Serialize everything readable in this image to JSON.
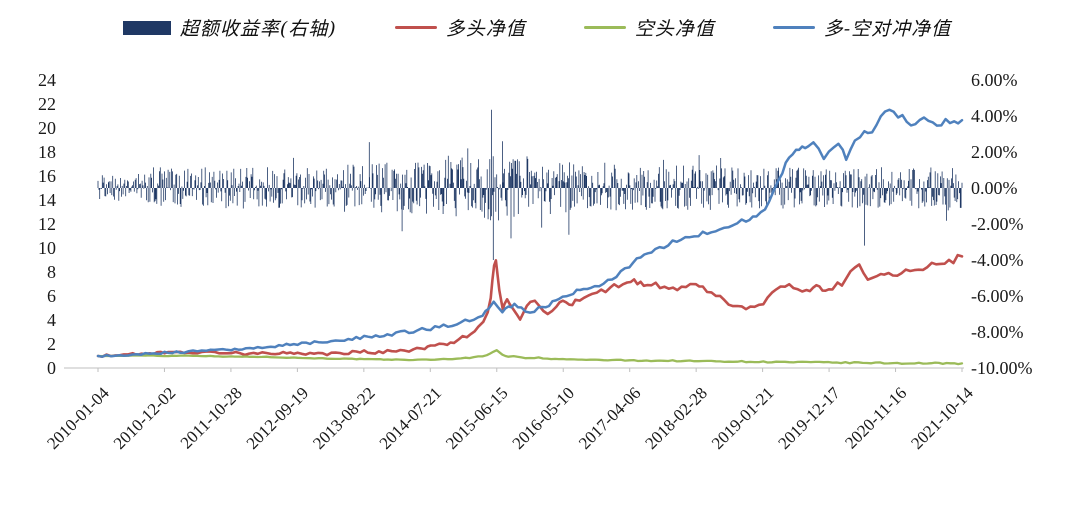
{
  "legend": {
    "items": [
      {
        "label": "超额收益率(右轴)",
        "type": "bar",
        "color": "#1f3864"
      },
      {
        "label": "多头净值",
        "type": "line",
        "color": "#c0504d"
      },
      {
        "label": "空头净值",
        "type": "line",
        "color": "#9bbb59"
      },
      {
        "label": "多-空对冲净值",
        "type": "line",
        "color": "#4f81bd"
      }
    ]
  },
  "chart_data": {
    "type": "combo",
    "title": "",
    "grid": false,
    "legend_position": "top",
    "left_axis": {
      "min": 0,
      "max": 24,
      "tick_step": 2,
      "ticks": [
        "24",
        "22",
        "20",
        "18",
        "16",
        "14",
        "12",
        "10",
        "8",
        "6",
        "4",
        "2",
        "0"
      ]
    },
    "right_axis": {
      "min": -10,
      "max": 6,
      "tick_step": 2,
      "ticks": [
        "6.00%",
        "4.00%",
        "2.00%",
        "0.00%",
        "-2.00%",
        "-4.00%",
        "-6.00%",
        "-8.00%",
        "-10.00%"
      ]
    },
    "x_labels": [
      "2010-01-04",
      "2010-12-02",
      "2011-10-28",
      "2012-09-19",
      "2013-08-22",
      "2014-07-21",
      "2015-06-15",
      "2016-05-10",
      "2017-04-06",
      "2018-02-28",
      "2019-01-21",
      "2019-12-17",
      "2020-11-16",
      "2021-10-14"
    ],
    "series": [
      {
        "name": "超额收益率(右轴)",
        "type": "bar",
        "axis": "right",
        "color": "#1f3864",
        "noise": {
          "n": 1000,
          "seed": 987654321,
          "base_amp": 1.15,
          "outlier_prob": 0.02,
          "outlier_scale": 1.7,
          "vol_periods": [
            {
              "from": 0.0,
              "to": 0.06,
              "amp": 0.8
            },
            {
              "from": 0.28,
              "to": 0.4,
              "amp": 1.45
            },
            {
              "from": 0.4,
              "to": 0.5,
              "amp": 1.8
            },
            {
              "from": 0.5,
              "to": 0.6,
              "amp": 1.5
            },
            {
              "from": 0.6,
              "to": 0.72,
              "amp": 1.25
            }
          ]
        },
        "spikes": [
          {
            "x": 0.4555,
            "value": 4.35
          },
          {
            "x": 0.4575,
            "value": -4.0
          },
          {
            "x": 0.314,
            "value": 2.55
          },
          {
            "x": 0.887,
            "value": -3.2
          },
          {
            "x": 0.545,
            "value": -2.6
          },
          {
            "x": 0.352,
            "value": -2.4
          },
          {
            "x": 0.428,
            "value": 2.2
          },
          {
            "x": 0.468,
            "value": 2.6
          },
          {
            "x": 0.478,
            "value": -2.8
          }
        ]
      },
      {
        "name": "多头净值",
        "type": "line",
        "axis": "left",
        "color": "#c0504d",
        "width": 2.6,
        "jitter": 0.25,
        "points": [
          [
            0,
            1.0
          ],
          [
            0.02,
            1.08
          ],
          [
            0.04,
            1.15
          ],
          [
            0.06,
            1.22
          ],
          [
            0.077,
            1.3
          ],
          [
            0.09,
            1.36
          ],
          [
            0.105,
            1.3
          ],
          [
            0.12,
            1.26
          ],
          [
            0.14,
            1.32
          ],
          [
            0.154,
            1.26
          ],
          [
            0.17,
            1.2
          ],
          [
            0.19,
            1.3
          ],
          [
            0.21,
            1.24
          ],
          [
            0.231,
            1.18
          ],
          [
            0.25,
            1.24
          ],
          [
            0.27,
            1.19
          ],
          [
            0.29,
            1.26
          ],
          [
            0.308,
            1.35
          ],
          [
            0.325,
            1.3
          ],
          [
            0.345,
            1.42
          ],
          [
            0.365,
            1.52
          ],
          [
            0.378,
            1.62
          ],
          [
            0.385,
            1.75
          ],
          [
            0.4,
            2.0
          ],
          [
            0.412,
            2.25
          ],
          [
            0.422,
            2.5
          ],
          [
            0.432,
            2.9
          ],
          [
            0.44,
            3.4
          ],
          [
            0.446,
            3.95
          ],
          [
            0.451,
            4.7
          ],
          [
            0.4545,
            5.7
          ],
          [
            0.4565,
            7.2
          ],
          [
            0.4585,
            8.5
          ],
          [
            0.4605,
            9.05
          ],
          [
            0.4625,
            7.9
          ],
          [
            0.4645,
            6.5
          ],
          [
            0.4665,
            5.55
          ],
          [
            0.4685,
            5.0
          ],
          [
            0.4705,
            5.35
          ],
          [
            0.4735,
            5.85
          ],
          [
            0.4765,
            5.4
          ],
          [
            0.4805,
            4.9
          ],
          [
            0.4845,
            4.4
          ],
          [
            0.4885,
            4.1
          ],
          [
            0.4925,
            4.65
          ],
          [
            0.4965,
            5.15
          ],
          [
            0.5005,
            5.45
          ],
          [
            0.5055,
            5.65
          ],
          [
            0.5105,
            5.3
          ],
          [
            0.5155,
            4.9
          ],
          [
            0.5205,
            4.45
          ],
          [
            0.5255,
            4.75
          ],
          [
            0.5305,
            5.2
          ],
          [
            0.538,
            5.45
          ],
          [
            0.5455,
            5.25
          ],
          [
            0.5525,
            5.5
          ],
          [
            0.5625,
            5.8
          ],
          [
            0.5725,
            6.1
          ],
          [
            0.5825,
            6.4
          ],
          [
            0.5925,
            6.65
          ],
          [
            0.6025,
            6.9
          ],
          [
            0.6125,
            7.1
          ],
          [
            0.6205,
            7.25
          ],
          [
            0.628,
            7.05
          ],
          [
            0.6355,
            6.85
          ],
          [
            0.6455,
            6.95
          ],
          [
            0.6555,
            6.7
          ],
          [
            0.6655,
            6.5
          ],
          [
            0.6755,
            6.6
          ],
          [
            0.6855,
            6.8
          ],
          [
            0.692,
            6.9
          ],
          [
            0.7,
            6.6
          ],
          [
            0.71,
            6.2
          ],
          [
            0.72,
            5.8
          ],
          [
            0.73,
            5.45
          ],
          [
            0.74,
            5.1
          ],
          [
            0.75,
            4.9
          ],
          [
            0.76,
            5.05
          ],
          [
            0.77,
            5.45
          ],
          [
            0.78,
            6.05
          ],
          [
            0.79,
            6.6
          ],
          [
            0.8,
            6.85
          ],
          [
            0.81,
            6.6
          ],
          [
            0.82,
            6.5
          ],
          [
            0.828,
            6.7
          ],
          [
            0.835,
            6.6
          ],
          [
            0.842,
            6.42
          ],
          [
            0.85,
            6.8
          ],
          [
            0.856,
            7.3
          ],
          [
            0.861,
            7.0
          ],
          [
            0.866,
            7.4
          ],
          [
            0.871,
            7.8
          ],
          [
            0.876,
            8.2
          ],
          [
            0.881,
            8.45
          ],
          [
            0.886,
            8.0
          ],
          [
            0.891,
            7.6
          ],
          [
            0.896,
            7.5
          ],
          [
            0.902,
            7.72
          ],
          [
            0.91,
            7.9
          ],
          [
            0.92,
            7.7
          ],
          [
            0.93,
            8.0
          ],
          [
            0.94,
            8.3
          ],
          [
            0.95,
            8.2
          ],
          [
            0.96,
            8.42
          ],
          [
            0.97,
            8.6
          ],
          [
            0.98,
            8.8
          ],
          [
            0.99,
            9.0
          ],
          [
            1,
            9.3
          ]
        ]
      },
      {
        "name": "空头净值",
        "type": "line",
        "axis": "left",
        "color": "#9bbb59",
        "width": 2.3,
        "jitter": 0.05,
        "points": [
          [
            0,
            1.0
          ],
          [
            0.03,
            1.02
          ],
          [
            0.06,
            1.05
          ],
          [
            0.077,
            1.0
          ],
          [
            0.1,
            1.04
          ],
          [
            0.13,
            0.99
          ],
          [
            0.154,
            0.95
          ],
          [
            0.18,
            0.94
          ],
          [
            0.205,
            0.9
          ],
          [
            0.231,
            0.85
          ],
          [
            0.26,
            0.8
          ],
          [
            0.29,
            0.76
          ],
          [
            0.308,
            0.73
          ],
          [
            0.34,
            0.7
          ],
          [
            0.37,
            0.68
          ],
          [
            0.385,
            0.7
          ],
          [
            0.41,
            0.76
          ],
          [
            0.43,
            0.85
          ],
          [
            0.45,
            1.05
          ],
          [
            0.4575,
            1.38
          ],
          [
            0.4615,
            1.45
          ],
          [
            0.468,
            1.1
          ],
          [
            0.475,
            0.96
          ],
          [
            0.481,
            1.02
          ],
          [
            0.49,
            0.86
          ],
          [
            0.5,
            0.8
          ],
          [
            0.51,
            0.86
          ],
          [
            0.52,
            0.76
          ],
          [
            0.538,
            0.73
          ],
          [
            0.56,
            0.69
          ],
          [
            0.58,
            0.67
          ],
          [
            0.6,
            0.65
          ],
          [
            0.63,
            0.62
          ],
          [
            0.66,
            0.6
          ],
          [
            0.69,
            0.58
          ],
          [
            0.72,
            0.56
          ],
          [
            0.75,
            0.53
          ],
          [
            0.78,
            0.5
          ],
          [
            0.81,
            0.48
          ],
          [
            0.84,
            0.46
          ],
          [
            0.87,
            0.44
          ],
          [
            0.9,
            0.42
          ],
          [
            0.93,
            0.4
          ],
          [
            0.96,
            0.39
          ],
          [
            1,
            0.38
          ]
        ]
      },
      {
        "name": "多-空对冲净值",
        "type": "line",
        "axis": "left",
        "color": "#4f81bd",
        "width": 2.5,
        "jitter": 0.22,
        "points": [
          [
            0,
            1.0
          ],
          [
            0.02,
            1.05
          ],
          [
            0.04,
            1.12
          ],
          [
            0.06,
            1.2
          ],
          [
            0.077,
            1.27
          ],
          [
            0.1,
            1.35
          ],
          [
            0.125,
            1.42
          ],
          [
            0.154,
            1.55
          ],
          [
            0.18,
            1.68
          ],
          [
            0.205,
            1.82
          ],
          [
            0.231,
            2.0
          ],
          [
            0.26,
            2.18
          ],
          [
            0.285,
            2.35
          ],
          [
            0.308,
            2.55
          ],
          [
            0.335,
            2.78
          ],
          [
            0.36,
            3.02
          ],
          [
            0.385,
            3.3
          ],
          [
            0.405,
            3.55
          ],
          [
            0.42,
            3.8
          ],
          [
            0.435,
            4.1
          ],
          [
            0.445,
            4.5
          ],
          [
            0.452,
            5.0
          ],
          [
            0.458,
            5.45
          ],
          [
            0.463,
            5.15
          ],
          [
            0.468,
            4.78
          ],
          [
            0.475,
            5.05
          ],
          [
            0.482,
            5.3
          ],
          [
            0.49,
            4.9
          ],
          [
            0.5,
            4.68
          ],
          [
            0.51,
            4.9
          ],
          [
            0.522,
            5.25
          ],
          [
            0.53,
            5.55
          ],
          [
            0.538,
            6.0
          ],
          [
            0.55,
            6.3
          ],
          [
            0.562,
            6.5
          ],
          [
            0.575,
            6.8
          ],
          [
            0.59,
            7.3
          ],
          [
            0.6,
            7.65
          ],
          [
            0.615,
            8.4
          ],
          [
            0.628,
            9.3
          ],
          [
            0.645,
            9.85
          ],
          [
            0.66,
            10.3
          ],
          [
            0.675,
            10.7
          ],
          [
            0.69,
            11.05
          ],
          [
            0.705,
            11.35
          ],
          [
            0.72,
            11.7
          ],
          [
            0.735,
            12.05
          ],
          [
            0.75,
            12.3
          ],
          [
            0.762,
            12.5
          ],
          [
            0.772,
            13.3
          ],
          [
            0.782,
            14.8
          ],
          [
            0.792,
            16.4
          ],
          [
            0.8,
            17.4
          ],
          [
            0.808,
            18.0
          ],
          [
            0.815,
            18.35
          ],
          [
            0.822,
            18.6
          ],
          [
            0.828,
            18.85
          ],
          [
            0.834,
            18.4
          ],
          [
            0.84,
            17.3
          ],
          [
            0.846,
            17.9
          ],
          [
            0.852,
            18.5
          ],
          [
            0.857,
            18.85
          ],
          [
            0.862,
            18.1
          ],
          [
            0.866,
            17.4
          ],
          [
            0.871,
            18.2
          ],
          [
            0.876,
            18.9
          ],
          [
            0.882,
            19.35
          ],
          [
            0.887,
            19.6
          ],
          [
            0.891,
            19.35
          ],
          [
            0.896,
            19.8
          ],
          [
            0.901,
            20.3
          ],
          [
            0.906,
            20.9
          ],
          [
            0.911,
            21.4
          ],
          [
            0.916,
            21.7
          ],
          [
            0.921,
            21.2
          ],
          [
            0.926,
            20.8
          ],
          [
            0.931,
            21.05
          ],
          [
            0.936,
            20.6
          ],
          [
            0.941,
            20.2
          ],
          [
            0.946,
            20.55
          ],
          [
            0.951,
            20.9
          ],
          [
            0.956,
            21.1
          ],
          [
            0.961,
            20.8
          ],
          [
            0.966,
            20.45
          ],
          [
            0.971,
            20.1
          ],
          [
            0.976,
            20.4
          ],
          [
            0.981,
            20.65
          ],
          [
            0.986,
            20.35
          ],
          [
            0.991,
            20.55
          ],
          [
            1,
            20.65
          ]
        ]
      }
    ]
  }
}
